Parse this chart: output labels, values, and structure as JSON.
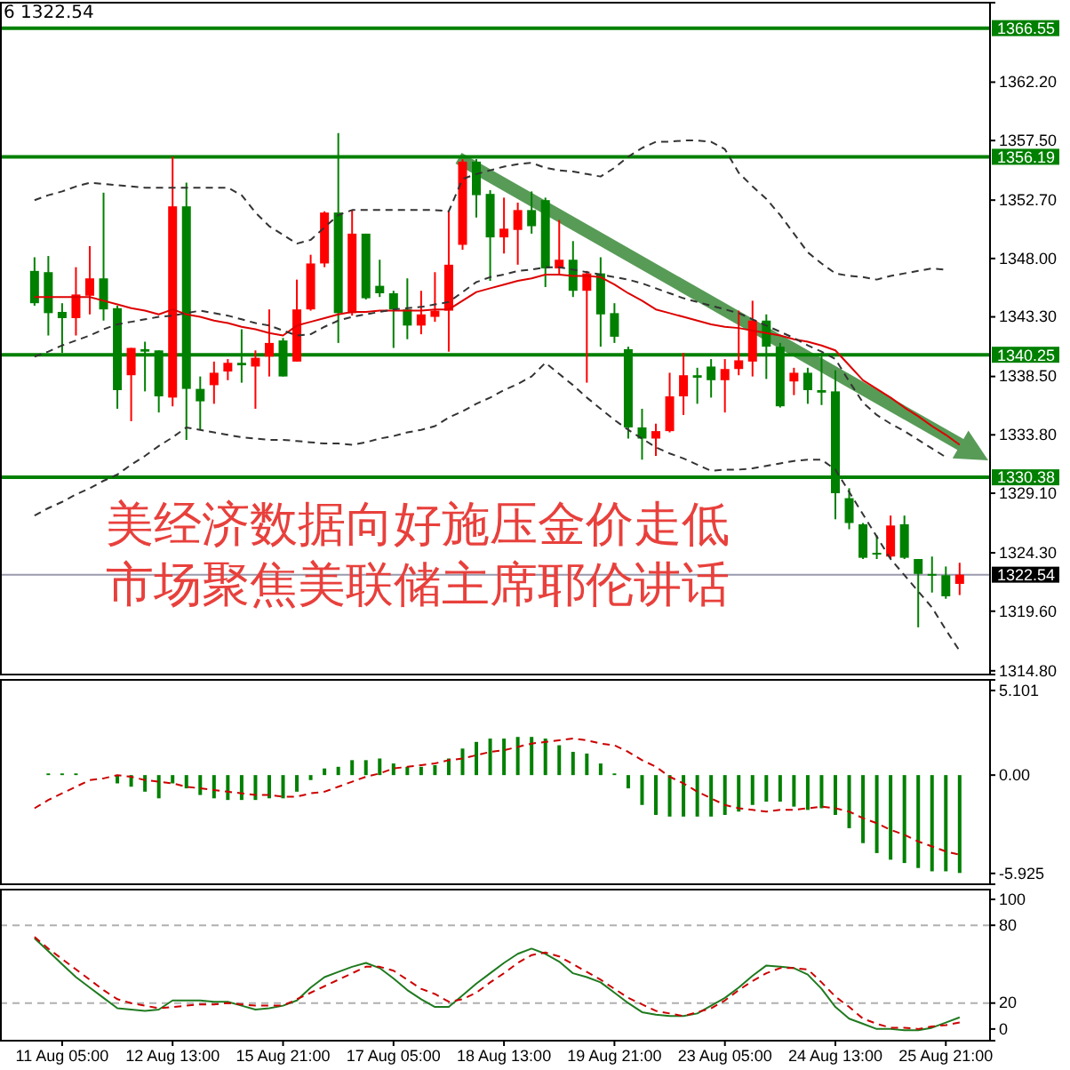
{
  "chart_data": [
    {
      "type": "candlestick",
      "ylim": [
        1314.5,
        1368.6
      ],
      "tick_labels": "y",
      "yticks": [
        {
          "value": 1314.8,
          "label": "1314.80"
        },
        {
          "value": 1319.6,
          "label": "1319.60"
        },
        {
          "value": 1324.3,
          "label": "1324.30"
        },
        {
          "value": 1329.1,
          "label": "1329.10"
        },
        {
          "value": 1333.8,
          "label": "1333.80"
        },
        {
          "value": 1338.5,
          "label": "1338.50"
        },
        {
          "value": 1343.3,
          "label": "1343.30"
        },
        {
          "value": 1348,
          "label": "1348.00"
        },
        {
          "value": 1352.7,
          "label": "1352.70"
        },
        {
          "value": 1357.5,
          "label": "1357.50"
        },
        {
          "value": 1362.2,
          "label": "1362.20"
        }
      ],
      "categories": [
        null,
        null,
        null,
        null,
        null,
        null,
        null,
        null,
        null,
        null,
        null,
        null,
        null,
        null,
        null,
        null,
        null,
        null,
        null,
        null,
        null,
        null,
        null,
        null,
        null,
        null,
        null,
        null,
        null,
        null,
        null,
        null,
        null,
        null,
        null,
        null,
        null,
        null,
        null,
        null,
        null,
        null,
        null,
        null,
        null,
        null,
        null,
        null,
        null,
        null,
        null,
        null,
        null,
        null,
        null,
        null,
        null,
        null,
        null,
        null,
        null,
        null,
        null,
        null,
        null,
        null,
        null,
        null
      ],
      "ohlc": [
        [
          1347.0,
          1348.1,
          1344.2,
          1344.4
        ],
        [
          1346.9,
          1348.2,
          1341.8,
          1343.6
        ],
        [
          1343.7,
          1344.4,
          1340.4,
          1343.2
        ],
        [
          1343.2,
          1347.3,
          1341.8,
          1345.1
        ],
        [
          1345.0,
          1349.0,
          1343.5,
          1346.4
        ],
        [
          1346.4,
          1353.3,
          1343.0,
          1343.9
        ],
        [
          1344.0,
          1344.2,
          1335.9,
          1337.4
        ],
        [
          1338.6,
          1340.8,
          1334.9,
          1340.8
        ],
        [
          1340.7,
          1341.3,
          1337.3,
          1340.5
        ],
        [
          1340.6,
          1340.6,
          1335.6,
          1336.9
        ],
        [
          1336.8,
          1356.2,
          1336.1,
          1352.2
        ],
        [
          1352.2,
          1354.1,
          1333.4,
          1337.5
        ],
        [
          1337.5,
          1338.5,
          1334.2,
          1336.5
        ],
        [
          1337.8,
          1339.7,
          1336.3,
          1338.8
        ],
        [
          1338.9,
          1339.9,
          1338.2,
          1339.6
        ],
        [
          1339.6,
          1342.3,
          1338.0,
          1339.4
        ],
        [
          1339.3,
          1340.6,
          1335.9,
          1340.0
        ],
        [
          1340.1,
          1343.9,
          1338.5,
          1341.2
        ],
        [
          1341.4,
          1341.6,
          1338.5,
          1338.5
        ],
        [
          1339.7,
          1346.3,
          1339.7,
          1343.9
        ],
        [
          1343.9,
          1348.3,
          1343.8,
          1347.6
        ],
        [
          1347.6,
          1351.8,
          1347.3,
          1351.7
        ],
        [
          1351.7,
          1358.1,
          1341.2,
          1343.6
        ],
        [
          1343.6,
          1351.9,
          1343.4,
          1350.0
        ],
        [
          1350.0,
          1350.0,
          1344.7,
          1344.8
        ],
        [
          1345.8,
          1347.9,
          1344.9,
          1345.2
        ],
        [
          1345.2,
          1345.4,
          1340.8,
          1343.9
        ],
        [
          1343.9,
          1346.4,
          1341.5,
          1342.6
        ],
        [
          1342.6,
          1345.4,
          1341.9,
          1343.5
        ],
        [
          1343.3,
          1346.9,
          1342.9,
          1343.8
        ],
        [
          1343.8,
          1351.8,
          1340.5,
          1347.5
        ],
        [
          1349.1,
          1356.0,
          1348.7,
          1355.8
        ],
        [
          1355.8,
          1356.0,
          1351.3,
          1353.1
        ],
        [
          1353.2,
          1353.5,
          1346.2,
          1349.7
        ],
        [
          1349.7,
          1352.9,
          1348.4,
          1350.4
        ],
        [
          1350.3,
          1352.5,
          1347.5,
          1351.9
        ],
        [
          1351.9,
          1353.4,
          1350.0,
          1350.6
        ],
        [
          1352.7,
          1352.9,
          1345.7,
          1347.2
        ],
        [
          1347.2,
          1351.1,
          1346.7,
          1347.9
        ],
        [
          1347.9,
          1349.4,
          1344.9,
          1345.4
        ],
        [
          1345.4,
          1347.0,
          1338.0,
          1346.8
        ],
        [
          1346.8,
          1348.1,
          1340.9,
          1343.5
        ],
        [
          1343.6,
          1344.4,
          1341.2,
          1341.7
        ],
        [
          1340.7,
          1340.9,
          1333.5,
          1334.4
        ],
        [
          1334.4,
          1335.9,
          1331.8,
          1333.5
        ],
        [
          1333.5,
          1334.7,
          1332.1,
          1334.1
        ],
        [
          1334.1,
          1338.8,
          1334.0,
          1336.9
        ],
        [
          1336.9,
          1340.4,
          1335.4,
          1338.6
        ],
        [
          1338.6,
          1339.2,
          1336.3,
          1338.4
        ],
        [
          1339.3,
          1339.9,
          1336.8,
          1338.2
        ],
        [
          1338.2,
          1339.9,
          1335.6,
          1339.1
        ],
        [
          1339.1,
          1343.8,
          1338.6,
          1339.8
        ],
        [
          1339.7,
          1344.6,
          1338.5,
          1343.0
        ],
        [
          1343.0,
          1343.5,
          1338.3,
          1340.9
        ],
        [
          1340.9,
          1341.2,
          1336.0,
          1336.1
        ],
        [
          1338.1,
          1339.2,
          1337.0,
          1338.8
        ],
        [
          1338.8,
          1339.2,
          1336.3,
          1337.4
        ],
        [
          1337.4,
          1340.4,
          1336.2,
          1337.2
        ],
        [
          1337.3,
          1339.0,
          1327.0,
          1329.1
        ],
        [
          1328.7,
          1329.5,
          1326.2,
          1326.7
        ],
        [
          1326.6,
          1326.7,
          1323.8,
          1323.9
        ],
        [
          1324.3,
          1325.7,
          1323.8,
          1324.2
        ],
        [
          1324.0,
          1327.3,
          1323.8,
          1326.5
        ],
        [
          1326.6,
          1327.3,
          1323.8,
          1323.9
        ],
        [
          1323.8,
          1323.8,
          1318.3,
          1322.6
        ],
        [
          1322.6,
          1324.0,
          1321.1,
          1322.5
        ],
        [
          1322.5,
          1323.2,
          1320.6,
          1320.8
        ],
        [
          1321.8,
          1323.5,
          1320.9,
          1322.54
        ]
      ],
      "colors": [
        "#008000",
        "#008000",
        "#008000",
        "#ff0000",
        "#ff0000",
        "#008000",
        "#008000",
        "#ff0000",
        "#008000",
        "#008000",
        "#ff0000",
        "#008000",
        "#008000",
        "#ff0000",
        "#ff0000",
        "#008000",
        "#ff0000",
        "#ff0000",
        "#008000",
        "#ff0000",
        "#ff0000",
        "#ff0000",
        "#008000",
        "#ff0000",
        "#008000",
        "#008000",
        "#008000",
        "#008000",
        "#ff0000",
        "#ff0000",
        "#ff0000",
        "#ff0000",
        "#008000",
        "#008000",
        "#ff0000",
        "#ff0000",
        "#008000",
        "#008000",
        "#ff0000",
        "#008000",
        "#ff0000",
        "#008000",
        "#008000",
        "#008000",
        "#008000",
        "#ff0000",
        "#ff0000",
        "#ff0000",
        "#008000",
        "#008000",
        "#ff0000",
        "#ff0000",
        "#ff0000",
        "#008000",
        "#008000",
        "#ff0000",
        "#008000",
        "#008000",
        "#008000",
        "#008000",
        "#008000",
        "#008000",
        "#ff0000",
        "#008000",
        "#008000",
        "#008000",
        "#008000",
        "#ff0000"
      ],
      "series": [
        {
          "type": "line",
          "color": "#dd0000",
          "values": [
            1344.9,
            1344.9,
            1344.9,
            1344.9,
            1344.9,
            1344.6,
            1344.3,
            1344.0,
            1343.8,
            1343.5,
            1343.9,
            1343.5,
            1343.3,
            1343.0,
            1342.8,
            1342.5,
            1342.3,
            1342.0,
            1341.8,
            1342.6,
            1342.9,
            1343.2,
            1343.5,
            1343.7,
            1343.7,
            1343.8,
            1343.8,
            1343.8,
            1343.8,
            1343.9,
            1343.9,
            1344.6,
            1345.3,
            1345.6,
            1345.9,
            1346.2,
            1346.4,
            1346.7,
            1346.7,
            1346.6,
            1346.6,
            1346.5,
            1345.9,
            1345.2,
            1344.6,
            1343.9,
            1343.6,
            1343.3,
            1343.0,
            1342.7,
            1342.5,
            1342.4,
            1342.2,
            1342.0,
            1341.8,
            1341.5,
            1341.3,
            1341.0,
            1340.6,
            1339.4,
            1338.2,
            1337.5,
            1336.8,
            1336.0,
            1335.3,
            1334.5,
            1333.8,
            1333.0
          ]
        },
        {
          "type": "line",
          "color": "#333333",
          "line_style": "dashed",
          "values": [
            1352.7,
            1353.1,
            1353.4,
            1353.8,
            1354.1,
            1354.0,
            1353.9,
            1353.8,
            1353.7,
            1353.7,
            1353.7,
            1353.7,
            1353.7,
            1353.7,
            1353.7,
            1353.1,
            1351.7,
            1350.6,
            1349.9,
            1349.2,
            1349.5,
            1350.5,
            1351.5,
            1351.9,
            1351.9,
            1351.9,
            1351.9,
            1351.9,
            1351.9,
            1351.9,
            1351.8,
            1354.4,
            1354.8,
            1355.1,
            1355.4,
            1355.6,
            1355.7,
            1355.3,
            1355.1,
            1355.0,
            1354.8,
            1354.6,
            1355.3,
            1356.2,
            1356.9,
            1357.4,
            1357.4,
            1357.5,
            1357.5,
            1357.4,
            1356.8,
            1354.9,
            1353.8,
            1352.8,
            1351.5,
            1350.0,
            1348.5,
            1347.6,
            1346.8,
            1346.6,
            1346.5,
            1346.3,
            1346.6,
            1346.8,
            1347.0,
            1347.2,
            1347.1,
            null
          ]
        },
        {
          "type": "line",
          "color": "#333333",
          "line_style": "dashed",
          "values": [
            1340.1,
            1340.5,
            1341.0,
            1341.4,
            1341.8,
            1342.3,
            1342.7,
            1342.9,
            1343.1,
            1343.3,
            1343.4,
            1343.6,
            1343.8,
            1343.6,
            1343.4,
            1343.1,
            1342.8,
            1342.6,
            1342.2,
            1341.8,
            1341.9,
            1342.5,
            1343.0,
            1343.3,
            1343.5,
            1343.7,
            1343.9,
            1344.0,
            1344.1,
            1344.3,
            1344.5,
            1345.3,
            1346.1,
            1346.5,
            1346.7,
            1347.0,
            1347.1,
            1347.3,
            1347.3,
            1347.1,
            1346.9,
            1346.7,
            1346.5,
            1346.3,
            1346.0,
            1345.6,
            1345.2,
            1344.8,
            1344.5,
            1344.2,
            1343.9,
            1343.6,
            1343.1,
            1342.6,
            1342.1,
            1341.6,
            1341.0,
            1340.5,
            1339.9,
            1338.1,
            1336.4,
            1335.4,
            1334.7,
            1334.1,
            1333.4,
            1332.7,
            1332.0,
            null
          ]
        },
        {
          "type": "line",
          "color": "#333333",
          "line_style": "dashed",
          "values": [
            1327.3,
            1327.9,
            1328.4,
            1329.0,
            1329.5,
            1330.1,
            1330.6,
            1331.4,
            1332.1,
            1332.9,
            1333.6,
            1334.4,
            1334.2,
            1334.0,
            1333.8,
            1333.6,
            1333.5,
            1333.4,
            1333.4,
            1333.3,
            1333.2,
            1333.1,
            1333.1,
            1333.0,
            1333.2,
            1333.5,
            1333.7,
            1334.0,
            1334.2,
            1334.5,
            1335.2,
            1335.7,
            1336.3,
            1336.8,
            1337.4,
            1337.9,
            1338.5,
            1339.6,
            1338.7,
            1337.8,
            1336.8,
            1335.9,
            1335.0,
            1334.2,
            1333.5,
            1332.8,
            1332.3,
            1331.9,
            1331.4,
            1330.9,
            1331.0,
            1331.0,
            1331.1,
            1331.3,
            1331.5,
            1331.7,
            1331.8,
            1331.8,
            1331.0,
            1329.2,
            1327.4,
            1325.6,
            1323.8,
            1322.5,
            1321.2,
            1319.9,
            1318.1,
            1316.4
          ]
        }
      ],
      "ref_lines": [
        {
          "axis": "y",
          "value": 1366.55,
          "label": "1366.55",
          "color": "#008000"
        },
        {
          "axis": "y",
          "value": 1356.19,
          "label": "1356.19",
          "color": "#008000"
        },
        {
          "axis": "y",
          "value": 1340.25,
          "label": "1340.25",
          "color": "#008000"
        },
        {
          "axis": "y",
          "value": 1330.38,
          "label": "1330.38",
          "color": "#008000"
        },
        {
          "axis": "y",
          "value": 1322.54,
          "label": "1322.54",
          "color": "#9a9aae"
        }
      ],
      "annotations": [
        "6 1322.54",
        "美经济数据向好施压金价走低",
        "市场聚焦美联储主席耶伦讲话"
      ]
    },
    {
      "type": "bar",
      "ylim": [
        -6.58,
        5.74
      ],
      "tick_labels": "y",
      "yticks": [
        {
          "value": 5.101,
          "label": "5.101"
        },
        {
          "value": 0,
          "label": "0.00"
        },
        {
          "value": -5.925,
          "label": "-5.925"
        }
      ],
      "categories": [
        null,
        null,
        null,
        null,
        null,
        null,
        null,
        null,
        null,
        null,
        null,
        null,
        null,
        null,
        null,
        null,
        null,
        null,
        null,
        null,
        null,
        null,
        null,
        null,
        null,
        null,
        null,
        null,
        null,
        null,
        null,
        null,
        null,
        null,
        null,
        null,
        null,
        null,
        null,
        null,
        null,
        null,
        null,
        null,
        null,
        null,
        null,
        null,
        null,
        null,
        null,
        null,
        null,
        null,
        null,
        null,
        null,
        null,
        null,
        null,
        null,
        null,
        null,
        null,
        null,
        null,
        null,
        null
      ],
      "series": [
        {
          "type": "bar",
          "color": "#008000",
          "values": [
            null,
            0.1,
            0.1,
            0.1,
            0,
            0,
            -0.5,
            -0.7,
            -1.0,
            -1.4,
            -0.5,
            -0.8,
            -1.2,
            -1.4,
            -1.5,
            -1.5,
            -1.5,
            -1.4,
            -1.4,
            -1.0,
            -0.3,
            0.4,
            0.5,
            0.9,
            0.9,
            1.0,
            0.7,
            0.5,
            0.5,
            0.6,
            1.0,
            1.6,
            2.0,
            2.2,
            2.2,
            2.3,
            2.3,
            2.2,
            1.8,
            1.4,
            1.3,
            0.7,
            0.1,
            -0.8,
            -1.8,
            -2.4,
            -2.5,
            -2.5,
            -2.5,
            -2.5,
            -2.4,
            -2.2,
            -1.8,
            -1.6,
            -1.6,
            -1.9,
            -2.1,
            -2.0,
            -2.4,
            -3.2,
            -4.1,
            -4.7,
            -5.1,
            -5.3,
            -5.6,
            -5.8,
            -5.8,
            -5.9
          ]
        },
        {
          "type": "line",
          "color": "#cc0000",
          "line_style": "dashed",
          "values": [
            -2.0,
            -1.5,
            -1.1,
            -0.7,
            -0.3,
            -0.2,
            0.0,
            -0.1,
            -0.3,
            -0.4,
            -0.5,
            -0.7,
            -0.8,
            -0.9,
            -1.0,
            -1.1,
            -1.2,
            -1.2,
            -1.3,
            -1.3,
            -1.1,
            -1.0,
            -0.7,
            -0.4,
            -0.1,
            0.1,
            0.4,
            0.5,
            0.6,
            0.7,
            0.9,
            1.0,
            1.2,
            1.4,
            1.5,
            1.7,
            1.9,
            2.0,
            2.1,
            2.2,
            2.1,
            1.9,
            1.8,
            1.4,
            0.9,
            0.5,
            -0.1,
            -0.5,
            -1.0,
            -1.4,
            -1.8,
            -2.0,
            -2.1,
            -2.2,
            -2.1,
            -2.1,
            -2.0,
            -1.9,
            -2.0,
            -2.2,
            -2.6,
            -2.9,
            -3.3,
            -3.6,
            -4.0,
            -4.3,
            -4.6,
            -4.8
          ]
        }
      ]
    },
    {
      "type": "line",
      "ylim": [
        -9,
        100
      ],
      "yticks": [
        0,
        20,
        80,
        100
      ],
      "categories": [
        null,
        null,
        "11 Aug 05:00",
        null,
        null,
        null,
        null,
        null,
        null,
        null,
        "12 Aug 13:00",
        null,
        null,
        null,
        null,
        null,
        null,
        null,
        "15 Aug 21:00",
        null,
        null,
        null,
        null,
        null,
        null,
        null,
        "17 Aug 05:00",
        null,
        null,
        null,
        null,
        null,
        null,
        null,
        "18 Aug 13:00",
        null,
        null,
        null,
        null,
        null,
        null,
        null,
        "19 Aug 21:00",
        null,
        null,
        null,
        null,
        null,
        null,
        null,
        "23 Aug 05:00",
        null,
        null,
        null,
        null,
        null,
        null,
        null,
        "24 Aug 13:00",
        null,
        null,
        null,
        null,
        null,
        null,
        null,
        "25 Aug 21:00",
        null
      ],
      "ref_lines": [
        {
          "axis": "y",
          "value": 80,
          "label": null,
          "color": "#b0b0b0",
          "line_style": "dashed"
        },
        {
          "axis": "y",
          "value": 20,
          "label": null,
          "color": "#b0b0b0",
          "line_style": "dashed"
        }
      ],
      "series": [
        {
          "type": "line",
          "color": "#1f7a1f",
          "values": [
            70,
            60,
            50,
            40,
            32,
            24,
            16,
            15,
            14,
            15,
            22,
            22,
            22,
            21,
            21,
            18,
            15,
            16,
            18,
            22,
            32,
            40,
            44,
            48,
            51,
            47,
            39,
            30,
            23,
            17,
            17,
            26,
            35,
            43,
            51,
            58,
            62,
            58,
            52,
            43,
            40,
            36,
            28,
            20,
            13,
            11,
            10,
            10,
            12,
            18,
            24,
            32,
            41,
            49,
            48,
            47,
            42,
            31,
            17,
            8,
            4,
            0,
            0,
            -1,
            -1,
            1,
            5,
            9
          ]
        },
        {
          "type": "line",
          "color": "#cc0000",
          "line_style": "dashed",
          "values": [
            71,
            62,
            54,
            46,
            38,
            30,
            23,
            20,
            18,
            16,
            17,
            18,
            19,
            19,
            20,
            19,
            18,
            18,
            18,
            23,
            28,
            33,
            38,
            43,
            48,
            48,
            45,
            38,
            31,
            27,
            21,
            23,
            28,
            36,
            43,
            51,
            57,
            59,
            56,
            50,
            44,
            38,
            31,
            24,
            19,
            14,
            12,
            10,
            13,
            16,
            22,
            30,
            37,
            43,
            47,
            47,
            46,
            36,
            25,
            17,
            8,
            4,
            1,
            1,
            0,
            2,
            3,
            5
          ]
        }
      ]
    }
  ]
}
